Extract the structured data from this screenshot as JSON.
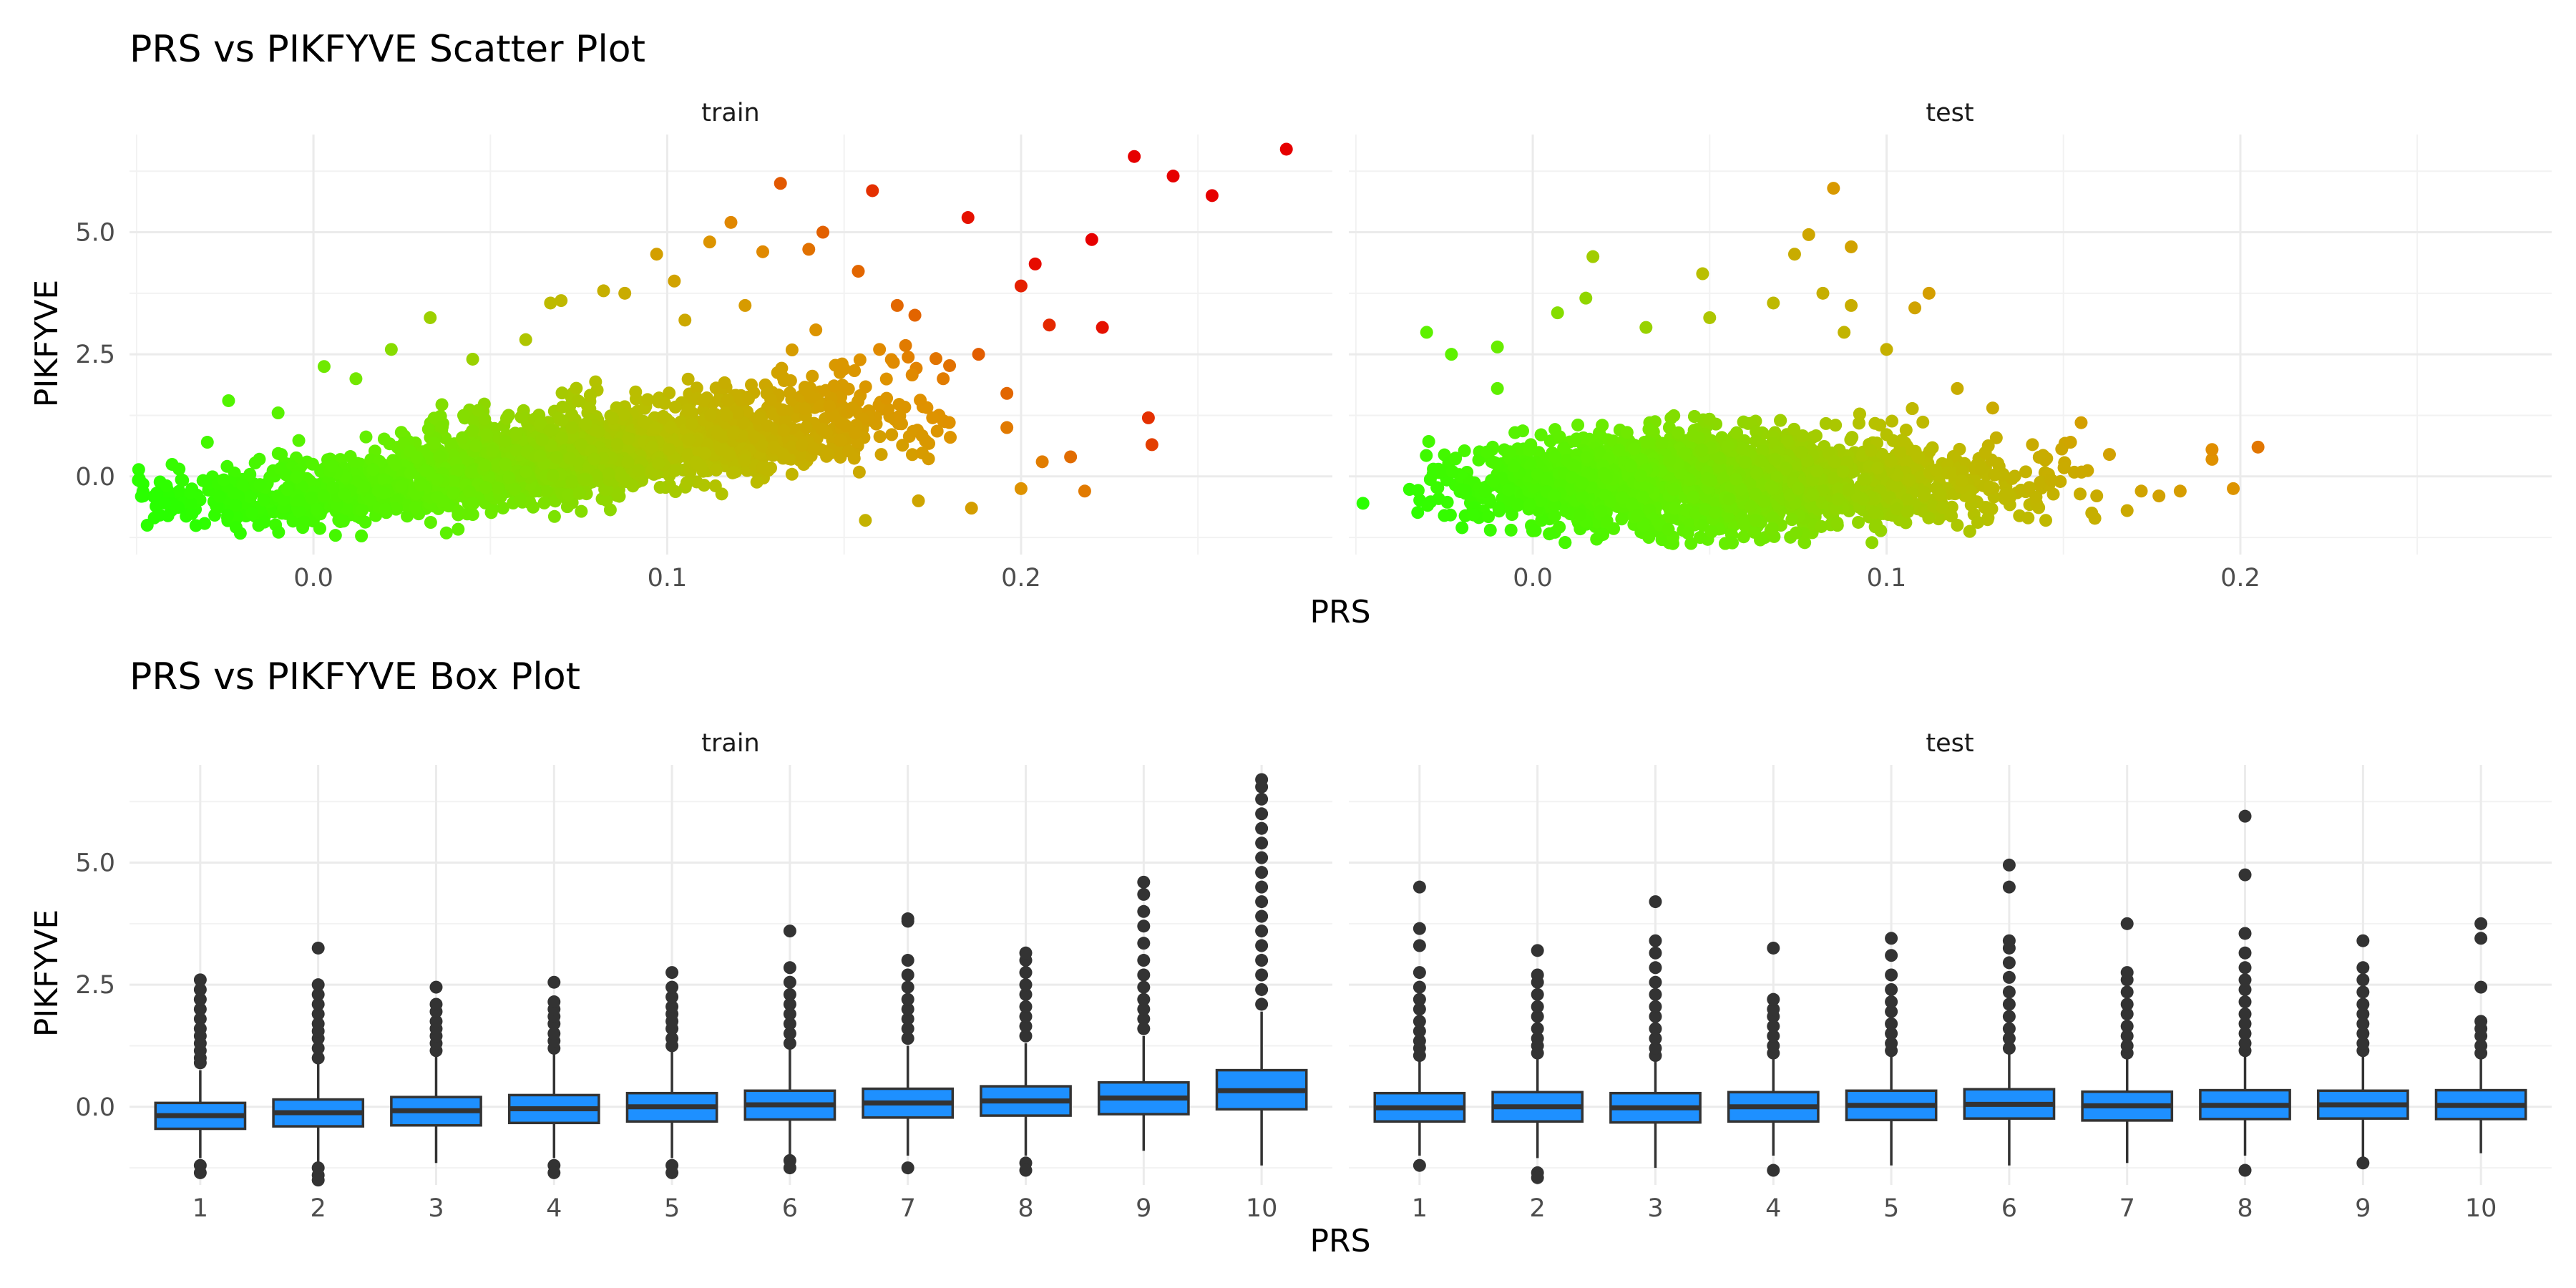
{
  "chart_data": [
    {
      "type": "scatter",
      "title": "PRS vs PIKFYVE Scatter Plot",
      "xlabel": "PRS",
      "ylabel": "PIKFYVE",
      "xlim": [
        -0.052,
        0.288
      ],
      "ylim": [
        -1.6,
        7.0
      ],
      "xticks": [
        "0.0",
        "0.1",
        "0.2"
      ],
      "xtick_values": [
        0.0,
        0.1,
        0.2
      ],
      "yticks": [
        "0.0",
        "2.5",
        "5.0"
      ],
      "ytick_values": [
        0.0,
        2.5,
        5.0
      ],
      "grid": true,
      "color_gradient": [
        "#2aff00",
        "#66ee00",
        "#b8c000",
        "#e09000",
        "#e60000"
      ],
      "facets": [
        {
          "label": "train",
          "cloud_xrange": [
            -0.05,
            0.18
          ],
          "points": [
            [
              0.275,
              6.7
            ],
            [
              0.232,
              6.55
            ],
            [
              0.243,
              6.15
            ],
            [
              0.254,
              5.75
            ],
            [
              0.22,
              4.85
            ],
            [
              0.132,
              6.0
            ],
            [
              0.158,
              5.85
            ],
            [
              0.185,
              5.3
            ],
            [
              0.204,
              4.35
            ],
            [
              0.208,
              3.1
            ],
            [
              0.223,
              3.05
            ],
            [
              0.2,
              3.9
            ],
            [
              0.196,
              1.7
            ],
            [
              0.196,
              1.0
            ],
            [
              0.206,
              0.3
            ],
            [
              0.214,
              0.4
            ],
            [
              0.2,
              -0.25
            ],
            [
              0.218,
              -0.3
            ],
            [
              0.186,
              -0.65
            ],
            [
              0.236,
              1.2
            ],
            [
              0.237,
              0.65
            ],
            [
              0.156,
              -0.9
            ],
            [
              0.171,
              -0.5
            ],
            [
              0.178,
              2.0
            ],
            [
              0.188,
              2.5
            ],
            [
              0.17,
              3.3
            ],
            [
              0.144,
              5.0
            ],
            [
              0.154,
              4.2
            ],
            [
              0.112,
              4.8
            ],
            [
              0.097,
              4.55
            ],
            [
              0.118,
              5.2
            ],
            [
              0.127,
              4.6
            ],
            [
              0.14,
              4.65
            ],
            [
              0.102,
              4.0
            ],
            [
              0.088,
              3.75
            ],
            [
              0.07,
              3.6
            ],
            [
              0.082,
              3.8
            ],
            [
              0.067,
              3.55
            ],
            [
              0.033,
              3.25
            ],
            [
              0.003,
              2.25
            ],
            [
              -0.024,
              1.55
            ],
            [
              -0.047,
              -1.0
            ],
            [
              -0.045,
              -0.85
            ],
            [
              -0.042,
              -0.55
            ],
            [
              -0.038,
              0.15
            ],
            [
              -0.03,
              0.7
            ],
            [
              -0.01,
              1.3
            ],
            [
              0.012,
              2.0
            ],
            [
              0.022,
              2.6
            ],
            [
              0.045,
              2.4
            ],
            [
              0.06,
              2.8
            ],
            [
              0.165,
              3.5
            ],
            [
              0.16,
              2.6
            ],
            [
              0.175,
              1.2
            ],
            [
              0.162,
              1.6
            ],
            [
              0.15,
              2.2
            ],
            [
              0.142,
              3.0
            ],
            [
              0.122,
              3.5
            ],
            [
              0.105,
              3.2
            ],
            [
              0.18,
              0.8
            ]
          ]
        },
        {
          "label": "test",
          "cloud_xrange": [
            -0.035,
            0.16
          ],
          "points": [
            [
              -0.048,
              -0.55
            ],
            [
              -0.03,
              2.95
            ],
            [
              -0.023,
              2.5
            ],
            [
              -0.01,
              2.65
            ],
            [
              -0.01,
              1.8
            ],
            [
              -0.025,
              -0.8
            ],
            [
              -0.02,
              -1.05
            ],
            [
              -0.012,
              -1.1
            ],
            [
              0.007,
              3.35
            ],
            [
              0.015,
              3.65
            ],
            [
              0.017,
              4.5
            ],
            [
              0.032,
              3.05
            ],
            [
              0.048,
              4.15
            ],
            [
              0.05,
              3.25
            ],
            [
              0.074,
              4.55
            ],
            [
              0.078,
              4.95
            ],
            [
              0.068,
              3.55
            ],
            [
              0.085,
              5.9
            ],
            [
              0.09,
              4.7
            ],
            [
              0.082,
              3.75
            ],
            [
              0.09,
              3.5
            ],
            [
              0.108,
              3.45
            ],
            [
              0.112,
              3.75
            ],
            [
              0.088,
              2.95
            ],
            [
              0.1,
              2.6
            ],
            [
              0.155,
              1.1
            ],
            [
              0.152,
              0.7
            ],
            [
              0.163,
              0.45
            ],
            [
              0.168,
              -0.7
            ],
            [
              0.172,
              -0.3
            ],
            [
              0.177,
              -0.4
            ],
            [
              0.183,
              -0.3
            ],
            [
              0.192,
              0.35
            ],
            [
              0.192,
              0.55
            ],
            [
              0.198,
              -0.25
            ],
            [
              0.205,
              0.6
            ],
            [
              0.14,
              -0.85
            ],
            [
              0.12,
              -1.0
            ],
            [
              0.145,
              -0.9
            ],
            [
              0.158,
              -0.75
            ],
            [
              0.13,
              1.4
            ],
            [
              0.12,
              1.8
            ]
          ]
        }
      ]
    },
    {
      "type": "box",
      "title": "PRS vs PIKFYVE Box Plot",
      "xlabel": "PRS",
      "ylabel": "PIKFYVE",
      "categories": [
        "1",
        "2",
        "3",
        "4",
        "5",
        "6",
        "7",
        "8",
        "9",
        "10"
      ],
      "ylim": [
        -1.6,
        7.0
      ],
      "yticks": [
        "0.0",
        "2.5",
        "5.0"
      ],
      "ytick_values": [
        0.0,
        2.5,
        5.0
      ],
      "box_color": "#1e90ff",
      "grid": true,
      "facets": [
        {
          "label": "train",
          "boxes": [
            {
              "q1": -0.45,
              "median": -0.18,
              "q3": 0.08,
              "low": -1.05,
              "high": 0.75,
              "outliers_high": [
                0.9,
                1.0,
                1.15,
                1.3,
                1.45,
                1.6,
                1.8,
                2.0,
                2.2,
                2.4,
                2.6
              ],
              "outliers_low": [
                -1.2,
                -1.35
              ]
            },
            {
              "q1": -0.4,
              "median": -0.12,
              "q3": 0.15,
              "low": -1.15,
              "high": 0.9,
              "outliers_high": [
                1.0,
                1.2,
                1.4,
                1.55,
                1.7,
                1.9,
                2.1,
                2.3,
                2.5,
                3.25
              ],
              "outliers_low": [
                -1.25,
                -1.4,
                -1.5
              ]
            },
            {
              "q1": -0.38,
              "median": -0.08,
              "q3": 0.2,
              "low": -1.15,
              "high": 1.05,
              "outliers_high": [
                1.15,
                1.3,
                1.45,
                1.6,
                1.75,
                1.95,
                2.1,
                2.45
              ],
              "outliers_low": []
            },
            {
              "q1": -0.33,
              "median": -0.04,
              "q3": 0.24,
              "low": -1.05,
              "high": 1.1,
              "outliers_high": [
                1.2,
                1.35,
                1.5,
                1.7,
                1.85,
                2.0,
                2.15,
                2.55
              ],
              "outliers_low": [
                -1.2,
                -1.35
              ]
            },
            {
              "q1": -0.3,
              "median": 0.0,
              "q3": 0.28,
              "low": -1.05,
              "high": 1.15,
              "outliers_high": [
                1.25,
                1.4,
                1.6,
                1.75,
                1.9,
                2.05,
                2.25,
                2.45,
                2.75
              ],
              "outliers_low": [
                -1.2,
                -1.35
              ]
            },
            {
              "q1": -0.26,
              "median": 0.04,
              "q3": 0.33,
              "low": -1.05,
              "high": 1.2,
              "outliers_high": [
                1.3,
                1.5,
                1.7,
                1.9,
                2.1,
                2.3,
                2.55,
                2.85,
                3.6
              ],
              "outliers_low": [
                -1.1,
                -1.25
              ]
            },
            {
              "q1": -0.22,
              "median": 0.08,
              "q3": 0.37,
              "low": -1.0,
              "high": 1.25,
              "outliers_high": [
                1.4,
                1.6,
                1.8,
                2.0,
                2.2,
                2.45,
                2.7,
                3.0,
                3.8,
                3.85
              ],
              "outliers_low": [
                -1.25
              ]
            },
            {
              "q1": -0.18,
              "median": 0.12,
              "q3": 0.42,
              "low": -1.0,
              "high": 1.3,
              "outliers_high": [
                1.45,
                1.65,
                1.85,
                2.05,
                2.3,
                2.5,
                2.75,
                3.0,
                3.15
              ],
              "outliers_low": [
                -1.15,
                -1.3
              ]
            },
            {
              "q1": -0.15,
              "median": 0.18,
              "q3": 0.5,
              "low": -0.9,
              "high": 1.45,
              "outliers_high": [
                1.6,
                1.8,
                2.0,
                2.2,
                2.45,
                2.7,
                3.0,
                3.35,
                3.7,
                4.0,
                4.35,
                4.6
              ],
              "outliers_low": []
            },
            {
              "q1": -0.05,
              "median": 0.33,
              "q3": 0.75,
              "low": -1.2,
              "high": 1.95,
              "outliers_high": [
                2.1,
                2.4,
                2.7,
                3.0,
                3.3,
                3.6,
                3.9,
                4.2,
                4.5,
                4.8,
                5.1,
                5.4,
                5.7,
                6.0,
                6.3,
                6.55,
                6.7
              ],
              "outliers_low": []
            }
          ]
        },
        {
          "label": "test",
          "boxes": [
            {
              "q1": -0.3,
              "median": -0.02,
              "q3": 0.28,
              "low": -1.0,
              "high": 0.95,
              "outliers_high": [
                1.05,
                1.2,
                1.35,
                1.55,
                1.75,
                2.0,
                2.2,
                2.45,
                2.75,
                3.3,
                3.65,
                4.5
              ],
              "outliers_low": [
                -1.2
              ]
            },
            {
              "q1": -0.3,
              "median": 0.0,
              "q3": 0.3,
              "low": -1.05,
              "high": 1.0,
              "outliers_high": [
                1.1,
                1.25,
                1.4,
                1.6,
                1.85,
                2.05,
                2.3,
                2.55,
                2.7,
                3.2
              ],
              "outliers_low": [
                -1.35,
                -1.45
              ]
            },
            {
              "q1": -0.32,
              "median": -0.02,
              "q3": 0.28,
              "low": -1.25,
              "high": 0.95,
              "outliers_high": [
                1.05,
                1.2,
                1.4,
                1.6,
                1.85,
                2.05,
                2.3,
                2.55,
                2.85,
                3.15,
                3.4,
                4.2
              ],
              "outliers_low": []
            },
            {
              "q1": -0.3,
              "median": 0.0,
              "q3": 0.3,
              "low": -1.0,
              "high": 1.0,
              "outliers_high": [
                1.1,
                1.25,
                1.45,
                1.65,
                1.85,
                2.0,
                2.2,
                3.25
              ],
              "outliers_low": [
                -1.3
              ]
            },
            {
              "q1": -0.27,
              "median": 0.03,
              "q3": 0.33,
              "low": -1.2,
              "high": 1.05,
              "outliers_high": [
                1.15,
                1.3,
                1.5,
                1.7,
                1.95,
                2.15,
                2.4,
                2.7,
                3.1,
                3.45
              ],
              "outliers_low": []
            },
            {
              "q1": -0.24,
              "median": 0.05,
              "q3": 0.36,
              "low": -1.2,
              "high": 1.1,
              "outliers_high": [
                1.2,
                1.4,
                1.6,
                1.85,
                2.1,
                2.35,
                2.65,
                2.95,
                3.25,
                3.4,
                4.5,
                4.95
              ],
              "outliers_low": []
            },
            {
              "q1": -0.28,
              "median": 0.02,
              "q3": 0.31,
              "low": -1.15,
              "high": 1.0,
              "outliers_high": [
                1.1,
                1.25,
                1.45,
                1.65,
                1.9,
                2.1,
                2.35,
                2.6,
                2.75,
                3.75
              ],
              "outliers_low": []
            },
            {
              "q1": -0.25,
              "median": 0.03,
              "q3": 0.34,
              "low": -1.0,
              "high": 1.05,
              "outliers_high": [
                1.15,
                1.3,
                1.5,
                1.7,
                1.9,
                2.15,
                2.4,
                2.6,
                2.85,
                3.15,
                3.55,
                4.75,
                5.95
              ],
              "outliers_low": [
                -1.3
              ]
            },
            {
              "q1": -0.24,
              "median": 0.04,
              "q3": 0.33,
              "low": -1.05,
              "high": 1.05,
              "outliers_high": [
                1.15,
                1.3,
                1.5,
                1.7,
                1.9,
                2.1,
                2.35,
                2.6,
                2.85,
                3.4
              ],
              "outliers_low": [
                -1.15
              ]
            },
            {
              "q1": -0.25,
              "median": 0.03,
              "q3": 0.34,
              "low": -0.95,
              "high": 1.0,
              "outliers_high": [
                1.1,
                1.25,
                1.45,
                1.6,
                1.75,
                2.45,
                3.45,
                3.75
              ],
              "outliers_low": []
            }
          ]
        }
      ]
    }
  ]
}
